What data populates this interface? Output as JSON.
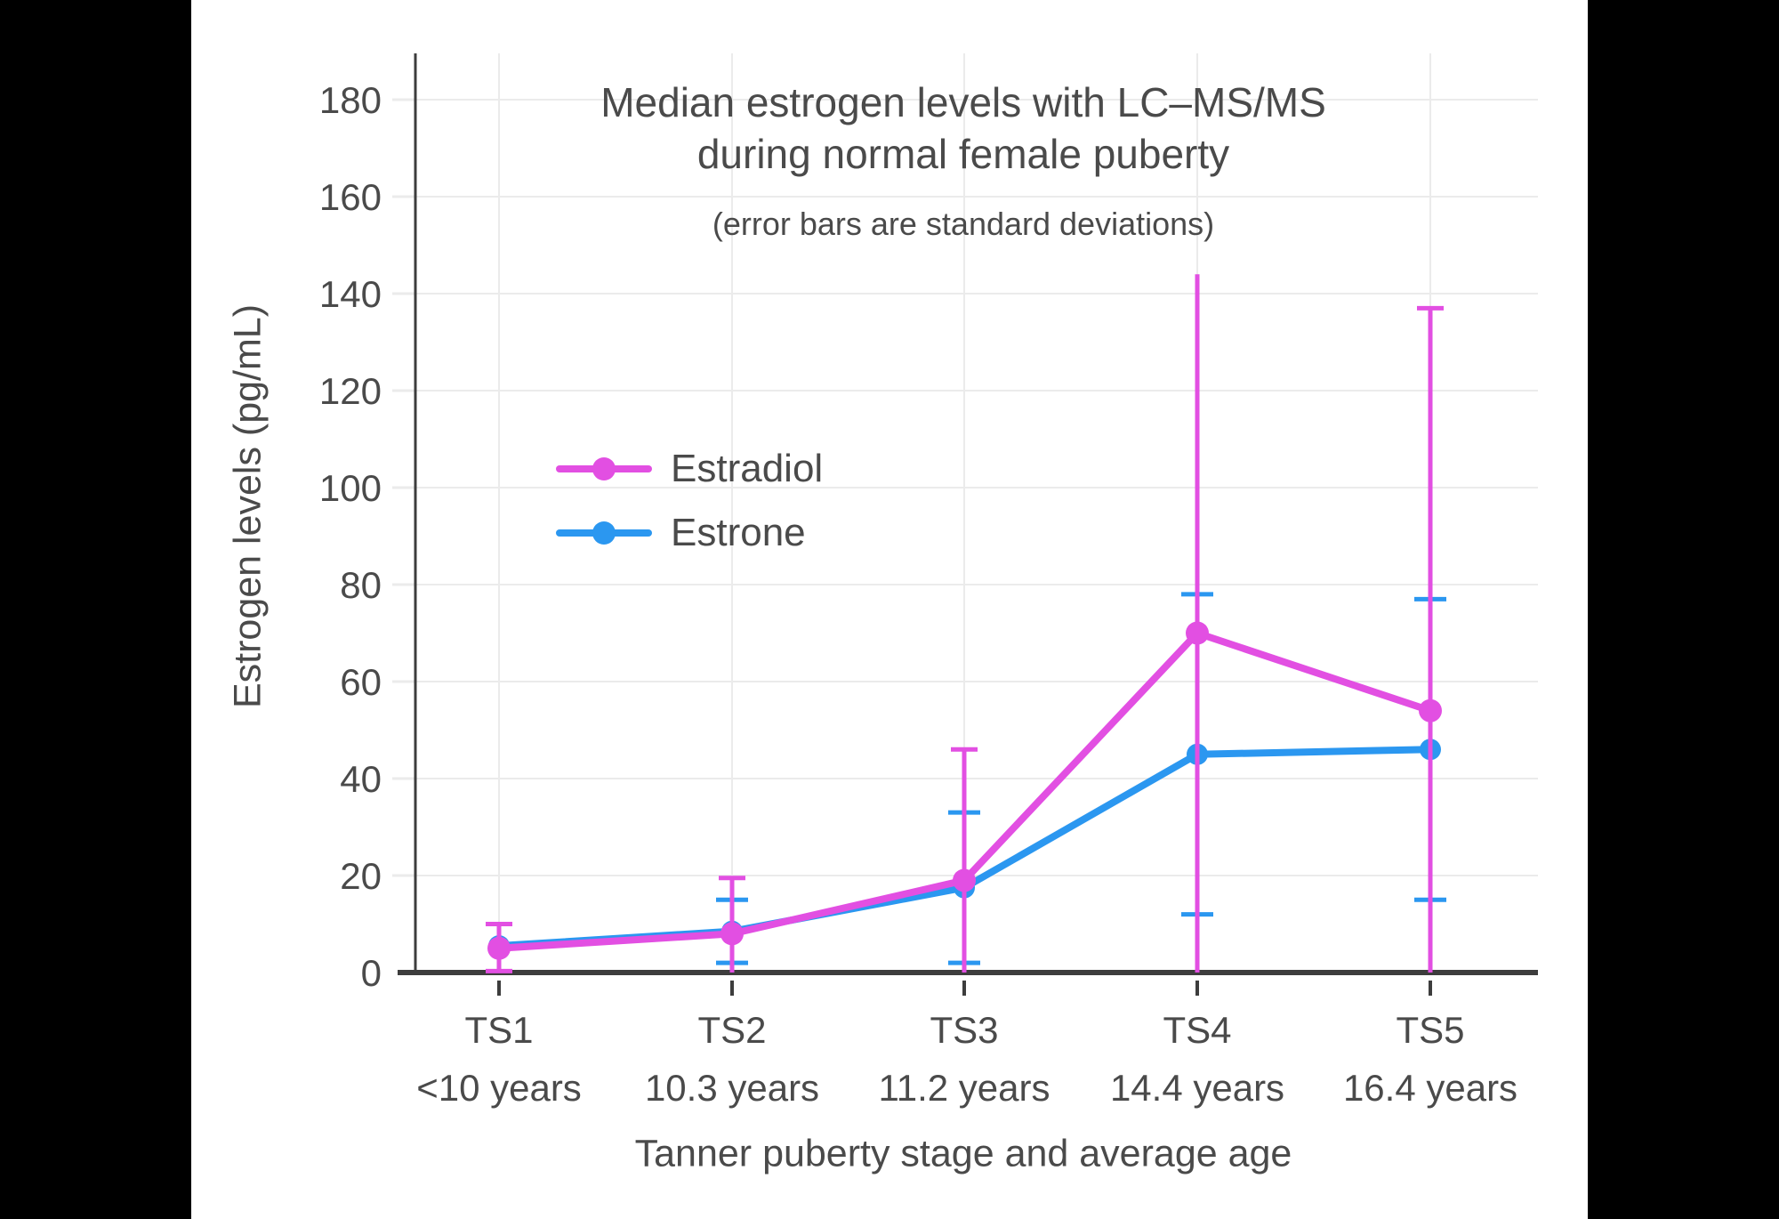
{
  "letterbox_color": "#000000",
  "background_color": "#FFFFFF",
  "colors": {
    "grid": "#EBEBEB",
    "axis": "#3D3D3D",
    "text": "#4A4A4A"
  },
  "chart": {
    "title_line1": "Median estrogen levels with LC–MS/MS",
    "title_line2": "during normal female puberty",
    "subtitle": "(error bars are standard deviations)",
    "ylabel": "Estrogen levels (pg/mL)",
    "xlabel": "Tanner puberty stage and average age",
    "legend": [
      "Estradiol",
      "Estrone"
    ]
  },
  "chart_data": {
    "type": "line",
    "title": "Median estrogen levels with LC–MS/MS during normal female puberty",
    "subtitle": "(error bars are standard deviations)",
    "xlabel": "Tanner puberty stage and average age",
    "ylabel": "Estrogen levels (pg/mL)",
    "ylim": [
      0,
      190
    ],
    "yticks": [
      0,
      20,
      40,
      60,
      80,
      100,
      120,
      140,
      160,
      180
    ],
    "grid": true,
    "legend_position": "inside-upper-left",
    "categories": [
      "TS1",
      "TS2",
      "TS3",
      "TS4",
      "TS5"
    ],
    "category_ages": [
      "<10 years",
      "10.3 years",
      "11.2 years",
      "14.4 years",
      "16.4 years"
    ],
    "series": [
      {
        "name": "Estrone",
        "color": "#2B97F0",
        "values": [
          5.5,
          8.5,
          17.5,
          45,
          46
        ],
        "error_bars": [
          null,
          {
            "upper": 15,
            "lower": 2,
            "upper_cap": true,
            "lower_cap": true
          },
          {
            "upper": 33,
            "lower": 2,
            "upper_cap": true,
            "lower_cap": true
          },
          {
            "upper": 78,
            "lower": 12,
            "upper_cap": true,
            "lower_cap": true
          },
          {
            "upper": 77,
            "lower": 15,
            "upper_cap": true,
            "lower_cap": true
          }
        ]
      },
      {
        "name": "Estradiol",
        "color": "#E24FE2",
        "values": [
          5,
          8,
          19,
          70,
          54
        ],
        "error_bars": [
          {
            "upper": 10,
            "lower": 0.3,
            "upper_cap": true,
            "lower_cap": true
          },
          {
            "upper": 19.5,
            "lower": 0,
            "upper_cap": true,
            "lower_cap": false
          },
          {
            "upper": 46,
            "lower": 0,
            "upper_cap": true,
            "lower_cap": false
          },
          {
            "upper": 144,
            "lower": 0,
            "upper_cap": false,
            "lower_cap": false
          },
          {
            "upper": 137,
            "lower": 0,
            "upper_cap": true,
            "lower_cap": false
          }
        ]
      }
    ]
  }
}
